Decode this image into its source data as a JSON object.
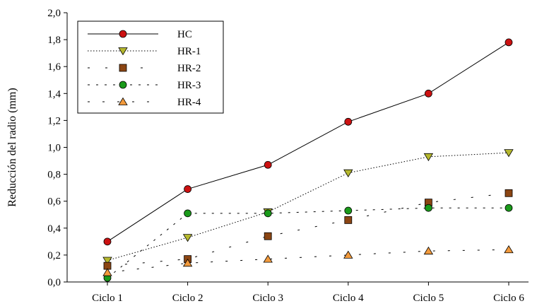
{
  "chart_data": {
    "type": "line",
    "title": "",
    "xlabel": "",
    "ylabel": "Reducción del radio (mm)",
    "categories": [
      "Ciclo 1",
      "Ciclo 2",
      "Ciclo 3",
      "Ciclo 4",
      "Ciclo 5",
      "Ciclo 6"
    ],
    "ylim": [
      0,
      2.0
    ],
    "yticks": [
      "0,0",
      "0,2",
      "0,4",
      "0,6",
      "0,8",
      "1,0",
      "1,2",
      "1,4",
      "1,6",
      "1,8",
      "2,0"
    ],
    "grid": false,
    "legend_position": "top-left",
    "series": [
      {
        "name": "HC",
        "values": [
          0.3,
          0.69,
          0.87,
          1.19,
          1.4,
          1.78
        ],
        "marker": "circle",
        "color": "#cc1111",
        "line": "solid"
      },
      {
        "name": "HR-1",
        "values": [
          0.16,
          0.33,
          0.52,
          0.81,
          0.93,
          0.96
        ],
        "marker": "triangle-down",
        "color": "#b5b82e",
        "line": "dotted"
      },
      {
        "name": "HR-2",
        "values": [
          0.12,
          0.17,
          0.34,
          0.46,
          0.59,
          0.66
        ],
        "marker": "square",
        "color": "#8b4513",
        "line": "dash-dot-sparse"
      },
      {
        "name": "HR-3",
        "values": [
          0.03,
          0.51,
          0.51,
          0.53,
          0.55,
          0.55
        ],
        "marker": "circle",
        "color": "#1a9a1a",
        "line": "short-dash"
      },
      {
        "name": "HR-4",
        "values": [
          0.07,
          0.14,
          0.17,
          0.2,
          0.23,
          0.24
        ],
        "marker": "triangle-up",
        "color": "#f29a3c",
        "line": "sparse-dash"
      }
    ]
  }
}
